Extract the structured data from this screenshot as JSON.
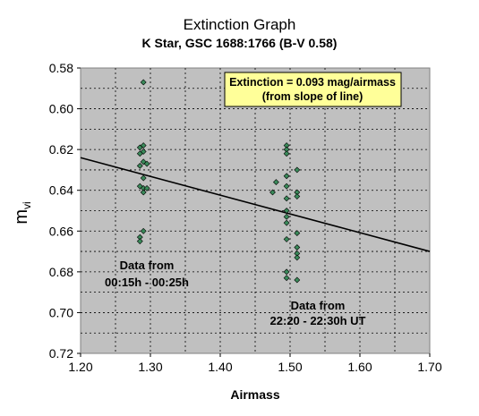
{
  "chart_data": {
    "type": "scatter",
    "title": "Extinction Graph",
    "subtitle": "K Star, GSC 1688:1766  (B-V 0.58)",
    "xlabel": "Airmass",
    "ylabel_main": "m",
    "ylabel_sub": "vi",
    "xlim": [
      1.2,
      1.7
    ],
    "ylim": [
      0.58,
      0.72
    ],
    "y_inverted": true,
    "grid": true,
    "xticks": [
      "1.20",
      "1.30",
      "1.40",
      "1.50",
      "1.60",
      "1.70"
    ],
    "yticks": [
      "0.58",
      "0.60",
      "0.62",
      "0.64",
      "0.66",
      "0.68",
      "0.70",
      "0.72"
    ],
    "marker_color": "#3a8a5a",
    "plot_bg": "#c0c0c0",
    "points": [
      {
        "x": 1.29,
        "y": 0.587
      },
      {
        "x": 1.285,
        "y": 0.619
      },
      {
        "x": 1.29,
        "y": 0.618
      },
      {
        "x": 1.29,
        "y": 0.621
      },
      {
        "x": 1.285,
        "y": 0.622
      },
      {
        "x": 1.29,
        "y": 0.626
      },
      {
        "x": 1.285,
        "y": 0.628
      },
      {
        "x": 1.295,
        "y": 0.627
      },
      {
        "x": 1.29,
        "y": 0.634
      },
      {
        "x": 1.285,
        "y": 0.638
      },
      {
        "x": 1.29,
        "y": 0.639
      },
      {
        "x": 1.29,
        "y": 0.641
      },
      {
        "x": 1.295,
        "y": 0.639
      },
      {
        "x": 1.29,
        "y": 0.66
      },
      {
        "x": 1.285,
        "y": 0.663
      },
      {
        "x": 1.285,
        "y": 0.665
      },
      {
        "x": 1.495,
        "y": 0.618
      },
      {
        "x": 1.495,
        "y": 0.62
      },
      {
        "x": 1.495,
        "y": 0.622
      },
      {
        "x": 1.51,
        "y": 0.63
      },
      {
        "x": 1.495,
        "y": 0.633
      },
      {
        "x": 1.48,
        "y": 0.636
      },
      {
        "x": 1.495,
        "y": 0.638
      },
      {
        "x": 1.475,
        "y": 0.641
      },
      {
        "x": 1.51,
        "y": 0.641
      },
      {
        "x": 1.51,
        "y": 0.643
      },
      {
        "x": 1.495,
        "y": 0.644
      },
      {
        "x": 1.495,
        "y": 0.65
      },
      {
        "x": 1.495,
        "y": 0.653
      },
      {
        "x": 1.495,
        "y": 0.656
      },
      {
        "x": 1.51,
        "y": 0.661
      },
      {
        "x": 1.495,
        "y": 0.664
      },
      {
        "x": 1.51,
        "y": 0.668
      },
      {
        "x": 1.51,
        "y": 0.671
      },
      {
        "x": 1.51,
        "y": 0.673
      },
      {
        "x": 1.495,
        "y": 0.68
      },
      {
        "x": 1.495,
        "y": 0.683
      },
      {
        "x": 1.51,
        "y": 0.684
      }
    ],
    "fit_line": {
      "x": [
        1.2,
        1.7
      ],
      "y": [
        0.624,
        0.67
      ]
    },
    "annotation_box": {
      "line1": "Extinction = 0.093 mag/airmass",
      "line2": "(from slope of line)",
      "bg": "#ffff99"
    },
    "annotations": [
      {
        "line1": "Data from",
        "line2": "00:15h - 00:25h"
      },
      {
        "line1": "Data from",
        "line2": "22:20 - 22:30h UT"
      }
    ]
  }
}
